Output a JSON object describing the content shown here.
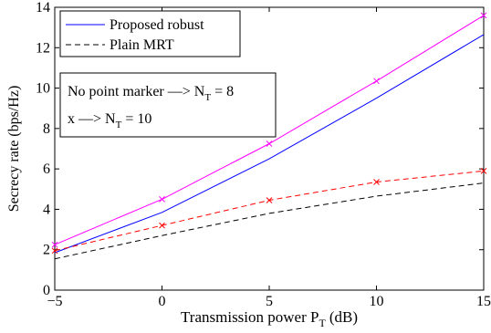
{
  "chart_data": {
    "type": "line",
    "xlabel": "Transmission power P",
    "xlabel_sub": "T",
    "xlabel_unit": "(dB)",
    "ylabel": "Secrecy rate (bps/Hz)",
    "xlim": [
      -5,
      15
    ],
    "ylim": [
      0,
      14
    ],
    "x_ticks": [
      -5,
      0,
      5,
      10,
      15
    ],
    "x_tick_labels": [
      "−5",
      "0",
      "5",
      "10",
      "15"
    ],
    "y_ticks": [
      0,
      2,
      4,
      6,
      8,
      10,
      12,
      14
    ],
    "y_tick_labels": [
      "0",
      "2",
      "4",
      "6",
      "8",
      "10",
      "12",
      "14"
    ],
    "grid": false,
    "legend": {
      "placement": "top-left",
      "entries": [
        {
          "label": "Proposed robust",
          "color": "#0000ff",
          "dash": "solid"
        },
        {
          "label": "Plain MRT",
          "color": "#000000",
          "dash": "dashed"
        }
      ]
    },
    "annotation": {
      "line1": "No point marker ––> N",
      "line1_sub": "T",
      "line1_tail": " = 8",
      "line2": "x ––> N",
      "line2_sub": "T",
      "line2_tail": " = 10"
    },
    "series": [
      {
        "color": "#0000ff",
        "dash": "solid",
        "marker": "none",
        "x": [
          -5,
          0,
          5,
          10,
          15
        ],
        "y": [
          1.85,
          3.85,
          6.5,
          9.5,
          12.65
        ]
      },
      {
        "color": "#ff00ff",
        "dash": "solid",
        "marker": "x",
        "x": [
          -5,
          0,
          5,
          10,
          15
        ],
        "y": [
          2.25,
          4.5,
          7.25,
          10.35,
          13.6
        ]
      },
      {
        "color": "#000000",
        "dash": "dashed",
        "marker": "none",
        "x": [
          -5,
          0,
          5,
          10,
          15
        ],
        "y": [
          1.55,
          2.7,
          3.8,
          4.65,
          5.3
        ]
      },
      {
        "color": "#ff0000",
        "dash": "dashed",
        "marker": "x",
        "x": [
          -5,
          0,
          5,
          10,
          15
        ],
        "y": [
          1.95,
          3.2,
          4.45,
          5.35,
          5.9
        ]
      }
    ]
  }
}
